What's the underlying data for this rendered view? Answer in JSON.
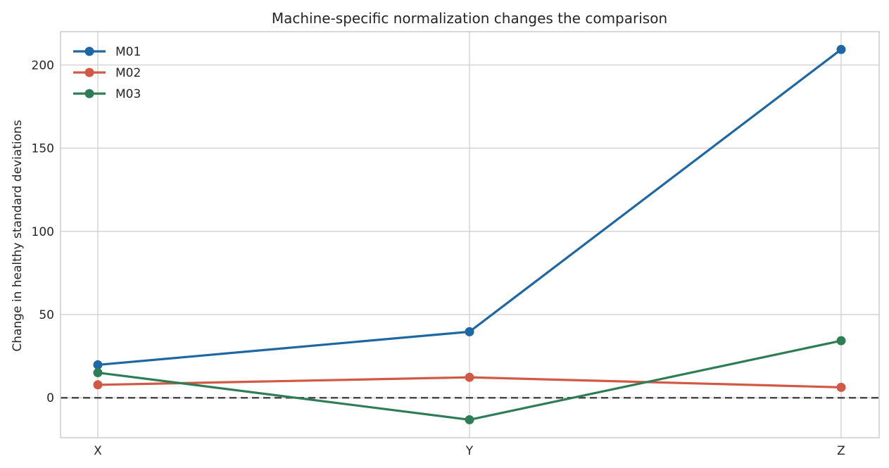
{
  "chart_data": {
    "type": "line",
    "title": "Machine-specific normalization changes the comparison",
    "xlabel": "",
    "ylabel": "Change in healthy standard deviations",
    "categories": [
      "X",
      "Y",
      "Z"
    ],
    "ylim": [
      -24,
      220
    ],
    "yticks": [
      0,
      50,
      100,
      150,
      200
    ],
    "grid": true,
    "legend_position": "top-left",
    "reference_line": {
      "y": 0,
      "style": "dashed",
      "color": "#4a4a4a"
    },
    "series": [
      {
        "name": "M01",
        "color": "#1f67a3",
        "values": [
          19.8,
          39.7,
          209.3
        ]
      },
      {
        "name": "M02",
        "color": "#d05a45",
        "values": [
          7.8,
          12.3,
          6.3
        ]
      },
      {
        "name": "M03",
        "color": "#2e7d57",
        "values": [
          15.1,
          -13.2,
          34.3
        ]
      }
    ]
  }
}
